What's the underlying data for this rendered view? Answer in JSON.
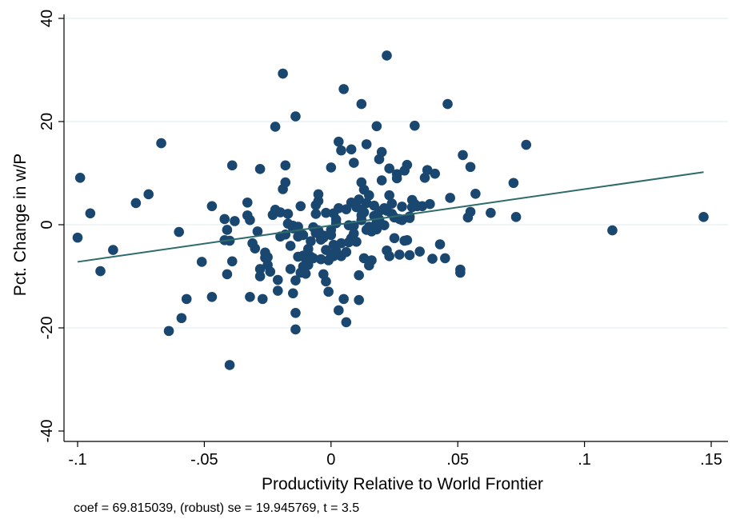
{
  "chart_data": {
    "type": "scatter",
    "title": "",
    "xlabel": "Productivity Relative to World Frontier",
    "ylabel": "Pct. Change in w/P",
    "note": "coef = 69.815039, (robust) se = 19.945769, t = 3.5",
    "xlim": [
      -0.1,
      0.15
    ],
    "ylim": [
      -40,
      40
    ],
    "xticks": [
      -0.1,
      -0.05,
      0,
      0.05,
      0.1,
      0.15
    ],
    "xtick_labels": [
      "-.1",
      "-.05",
      "0",
      ".05",
      ".1",
      ".15"
    ],
    "yticks": [
      -40,
      -20,
      0,
      20,
      40
    ],
    "ytick_labels": [
      "-40",
      "-20",
      "0",
      "20",
      "40"
    ],
    "grid": "horizontal",
    "colors": {
      "points": "#1a476f",
      "fit_line": "#2e6b6b",
      "grid": "#eaf2f3",
      "axis": "#000000"
    },
    "fit_line": {
      "x": [
        -0.1,
        0.147
      ],
      "y": [
        -7.2,
        10.2
      ]
    },
    "points": [
      [
        -0.1,
        -2.5
      ],
      [
        -0.099,
        9.1
      ],
      [
        -0.095,
        2.2
      ],
      [
        -0.091,
        -9.0
      ],
      [
        -0.086,
        -4.9
      ],
      [
        -0.077,
        4.2
      ],
      [
        -0.072,
        5.9
      ],
      [
        -0.067,
        15.8
      ],
      [
        -0.064,
        -20.6
      ],
      [
        -0.06,
        -1.4
      ],
      [
        -0.059,
        -18.1
      ],
      [
        -0.057,
        -14.4
      ],
      [
        -0.051,
        -7.2
      ],
      [
        -0.047,
        3.6
      ],
      [
        -0.047,
        -14.0
      ],
      [
        -0.042,
        1.1
      ],
      [
        -0.041,
        -1.0
      ],
      [
        -0.041,
        -9.6
      ],
      [
        -0.04,
        -27.2
      ],
      [
        -0.039,
        11.5
      ],
      [
        -0.039,
        -7.1
      ],
      [
        -0.038,
        0.7
      ],
      [
        -0.042,
        -3.0
      ],
      [
        -0.04,
        -3.1
      ],
      [
        -0.033,
        4.3
      ],
      [
        -0.033,
        1.8
      ],
      [
        -0.032,
        -14.0
      ],
      [
        -0.032,
        0.9
      ],
      [
        -0.031,
        -3.6
      ],
      [
        -0.03,
        -4.6
      ],
      [
        -0.029,
        -1.3
      ],
      [
        -0.028,
        -10.0
      ],
      [
        -0.028,
        -8.6
      ],
      [
        -0.028,
        10.8
      ],
      [
        -0.027,
        -14.4
      ],
      [
        -0.026,
        -5.4
      ],
      [
        -0.025,
        -7.8
      ],
      [
        -0.025,
        -6.3
      ],
      [
        -0.024,
        -9.1
      ],
      [
        -0.023,
        1.9
      ],
      [
        -0.022,
        2.9
      ],
      [
        -0.022,
        19.0
      ],
      [
        -0.021,
        -10.7
      ],
      [
        -0.021,
        -12.8
      ],
      [
        -0.02,
        -2.3
      ],
      [
        -0.02,
        2.4
      ],
      [
        -0.019,
        6.9
      ],
      [
        -0.019,
        29.3
      ],
      [
        -0.018,
        8.2
      ],
      [
        -0.018,
        11.5
      ],
      [
        -0.018,
        -1.9
      ],
      [
        -0.017,
        2.1
      ],
      [
        -0.017,
        0.2
      ],
      [
        -0.016,
        -4.1
      ],
      [
        -0.016,
        -8.6
      ],
      [
        -0.015,
        -13.3
      ],
      [
        -0.015,
        -0.2
      ],
      [
        -0.014,
        21.0
      ],
      [
        -0.014,
        -20.3
      ],
      [
        -0.014,
        -17.1
      ],
      [
        -0.014,
        -10.8
      ],
      [
        -0.013,
        -6.2
      ],
      [
        -0.013,
        -2.3
      ],
      [
        -0.012,
        -9.3
      ],
      [
        -0.012,
        3.6
      ],
      [
        -0.011,
        -8.1
      ],
      [
        -0.011,
        -2.0
      ],
      [
        -0.01,
        -9.5
      ],
      [
        -0.01,
        -6.6
      ],
      [
        -0.009,
        -7.8
      ],
      [
        -0.009,
        -4.7
      ],
      [
        -0.008,
        -3.2
      ],
      [
        -0.007,
        -6.5
      ],
      [
        -0.006,
        2.1
      ],
      [
        -0.006,
        -1.6
      ],
      [
        -0.006,
        3.8
      ],
      [
        -0.005,
        5.9
      ],
      [
        -0.005,
        4.6
      ],
      [
        -0.005,
        -1.1
      ],
      [
        -0.004,
        -2.9
      ],
      [
        -0.004,
        -6.7
      ],
      [
        -0.003,
        -9.6
      ],
      [
        -0.003,
        -2.1
      ],
      [
        -0.002,
        -11.0
      ],
      [
        -0.002,
        2.3
      ],
      [
        -0.002,
        -4.9
      ],
      [
        -0.001,
        -13.0
      ],
      [
        -0.001,
        -6.9
      ],
      [
        0.0,
        -2.0
      ],
      [
        0.0,
        -1.0
      ],
      [
        0.0,
        11.1
      ],
      [
        0.001,
        -6.1
      ],
      [
        0.001,
        2.2
      ],
      [
        0.001,
        -3.9
      ],
      [
        0.002,
        -5.1
      ],
      [
        0.002,
        0.3
      ],
      [
        0.003,
        16.1
      ],
      [
        0.003,
        -16.6
      ],
      [
        0.003,
        3.2
      ],
      [
        0.004,
        14.4
      ],
      [
        0.004,
        -6.1
      ],
      [
        0.005,
        26.3
      ],
      [
        0.005,
        -14.4
      ],
      [
        0.006,
        -18.9
      ],
      [
        0.006,
        -5.3
      ],
      [
        0.007,
        -0.1
      ],
      [
        0.008,
        14.6
      ],
      [
        0.008,
        4.3
      ],
      [
        0.008,
        -2.6
      ],
      [
        0.009,
        12.0
      ],
      [
        0.009,
        -0.2
      ],
      [
        0.01,
        3.4
      ],
      [
        0.01,
        -3.3
      ],
      [
        0.011,
        -9.8
      ],
      [
        0.011,
        -14.6
      ],
      [
        0.011,
        4.9
      ],
      [
        0.012,
        8.2
      ],
      [
        0.012,
        23.4
      ],
      [
        0.012,
        0.9
      ],
      [
        0.013,
        -6.5
      ],
      [
        0.013,
        6.8
      ],
      [
        0.013,
        2.4
      ],
      [
        0.014,
        4.2
      ],
      [
        0.014,
        -1.0
      ],
      [
        0.014,
        15.6
      ],
      [
        0.015,
        -7.9
      ],
      [
        0.015,
        5.7
      ],
      [
        0.016,
        -6.9
      ],
      [
        0.016,
        -1.3
      ],
      [
        0.017,
        3.7
      ],
      [
        0.017,
        1.7
      ],
      [
        0.018,
        19.1
      ],
      [
        0.018,
        -0.9
      ],
      [
        0.019,
        12.7
      ],
      [
        0.019,
        2.6
      ],
      [
        0.02,
        14.1
      ],
      [
        0.02,
        8.6
      ],
      [
        0.021,
        -0.1
      ],
      [
        0.021,
        3.2
      ],
      [
        0.022,
        32.8
      ],
      [
        0.022,
        -5.0
      ],
      [
        0.022,
        2.7
      ],
      [
        0.023,
        -6.1
      ],
      [
        0.023,
        5.7
      ],
      [
        0.023,
        10.9
      ],
      [
        0.024,
        4.1
      ],
      [
        0.025,
        -2.6
      ],
      [
        0.025,
        1.4
      ],
      [
        0.026,
        9.8
      ],
      [
        0.026,
        9.0
      ],
      [
        0.027,
        1.1
      ],
      [
        0.027,
        -5.8
      ],
      [
        0.028,
        3.5
      ],
      [
        0.029,
        -3.1
      ],
      [
        0.029,
        10.5
      ],
      [
        0.03,
        11.6
      ],
      [
        0.03,
        -3.0
      ],
      [
        0.031,
        -5.9
      ],
      [
        0.031,
        1.3
      ],
      [
        0.031,
        1.6
      ],
      [
        0.032,
        4.8
      ],
      [
        0.033,
        19.2
      ],
      [
        0.033,
        4.0
      ],
      [
        0.034,
        3.6
      ],
      [
        0.035,
        -5.2
      ],
      [
        0.036,
        3.6
      ],
      [
        0.037,
        9.1
      ],
      [
        0.038,
        10.6
      ],
      [
        0.039,
        4.0
      ],
      [
        0.04,
        -6.6
      ],
      [
        0.041,
        9.9
      ],
      [
        0.043,
        -3.8
      ],
      [
        0.045,
        -6.5
      ],
      [
        0.046,
        23.4
      ],
      [
        0.047,
        5.2
      ],
      [
        0.051,
        -9.3
      ],
      [
        0.051,
        -8.7
      ],
      [
        0.052,
        13.5
      ],
      [
        0.054,
        1.4
      ],
      [
        0.055,
        2.5
      ],
      [
        0.055,
        11.2
      ],
      [
        0.057,
        6.0
      ],
      [
        0.063,
        2.3
      ],
      [
        0.072,
        8.1
      ],
      [
        0.073,
        1.5
      ],
      [
        0.077,
        15.5
      ],
      [
        0.111,
        -1.1
      ],
      [
        0.147,
        1.5
      ],
      [
        -0.026,
        -6.4
      ],
      [
        -0.015,
        -0.7
      ],
      [
        -0.013,
        -0.4
      ],
      [
        -0.011,
        -6.0
      ],
      [
        -0.008,
        -6.2
      ],
      [
        -0.007,
        -0.5
      ],
      [
        0.002,
        1.0
      ],
      [
        0.004,
        -3.6
      ],
      [
        0.007,
        -3.4
      ],
      [
        0.009,
        -1.7
      ],
      [
        0.012,
        1.8
      ],
      [
        0.015,
        -0.4
      ],
      [
        0.017,
        -0.8
      ],
      [
        0.019,
        1.0
      ],
      [
        0.024,
        2.1
      ],
      [
        0.028,
        0.9
      ],
      [
        0.032,
        3.4
      ],
      [
        0.012,
        3.0
      ],
      [
        0.018,
        0.5
      ],
      [
        -0.003,
        -2.5
      ],
      [
        0.006,
        3.0
      ],
      [
        0.0,
        -5.8
      ]
    ]
  }
}
